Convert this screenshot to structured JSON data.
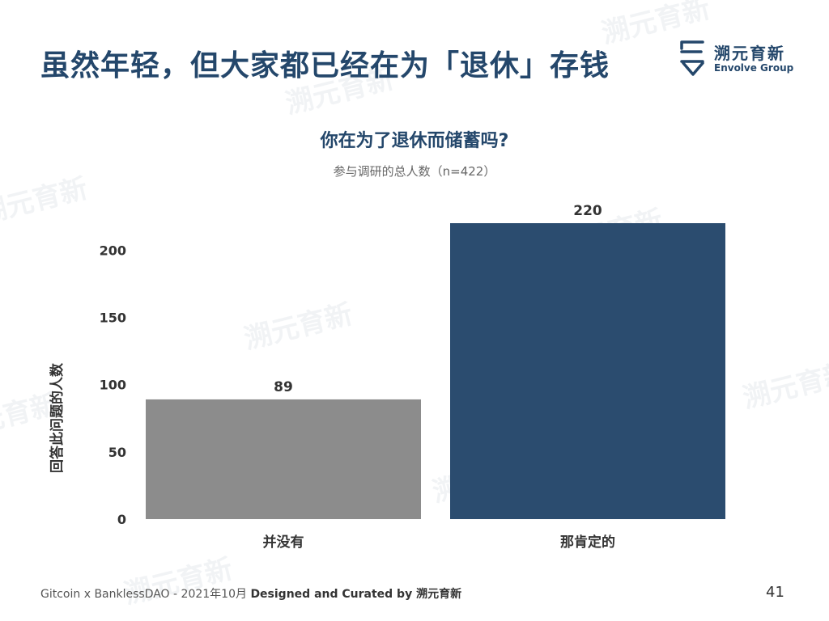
{
  "slide": {
    "title": "虽然年轻，但大家都已经在为「退休」存钱",
    "page_number": "41"
  },
  "logo": {
    "name_cn": "溯元育新",
    "name_en": "Envolve Group"
  },
  "footer": {
    "prefix": "Gitcoin x BanklessDAO - 2021年10月 ",
    "bold": "Designed and Curated by 溯元育新"
  },
  "colors": {
    "title": "#24476b",
    "bar_no": "#8c8c8c",
    "bar_yes": "#2b4c6f"
  },
  "chart_data": {
    "type": "bar",
    "title": "你在为了退休而储蓄吗?",
    "subtitle": "参与调研的总人数（n=422）",
    "xlabel": "",
    "ylabel": "回答此问题的人数",
    "categories": [
      "并没有",
      "那肯定的"
    ],
    "values": [
      89,
      220
    ],
    "data_labels": [
      "89",
      "220"
    ],
    "ylim": [
      0,
      220
    ],
    "yticks": [
      0,
      50,
      100,
      150,
      200
    ],
    "grid": false,
    "legend": "none"
  }
}
